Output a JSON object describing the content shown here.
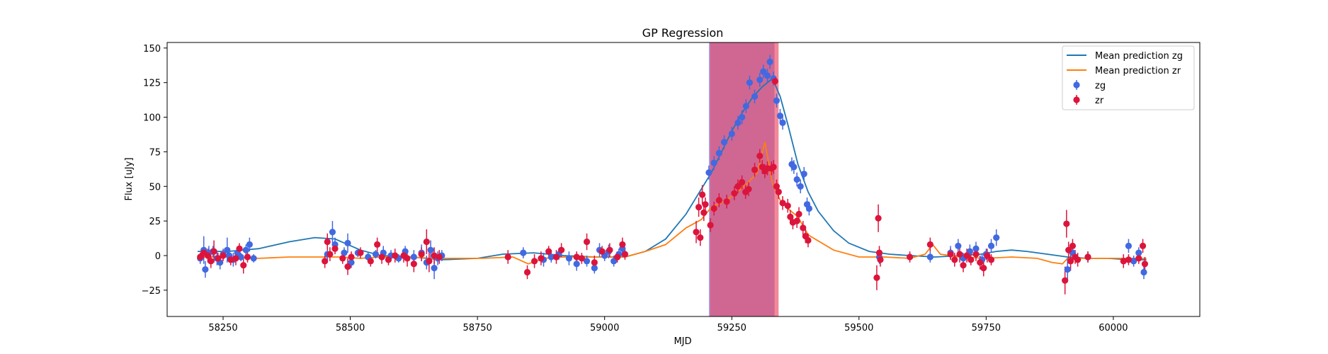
{
  "chart_data": {
    "type": "scatter",
    "title": "GP Regression",
    "xlabel": "MJD",
    "ylabel": "Flux [uJy]",
    "xlim": [
      58140,
      60170
    ],
    "ylim": [
      -44,
      154
    ],
    "xticks": [
      58250,
      58500,
      58750,
      59000,
      59250,
      59500,
      59750,
      60000
    ],
    "yticks": [
      -25,
      0,
      25,
      50,
      75,
      100,
      125,
      150
    ],
    "legend_position": "top-right",
    "shaded_regions": [
      {
        "band": "zg",
        "x_range": [
          59205,
          59334
        ],
        "color": "#6f6fe0"
      },
      {
        "band": "zr",
        "x_range": [
          59207,
          59342
        ],
        "color": "#e8405a"
      }
    ],
    "lines": [
      {
        "name": "Mean prediction zg",
        "color": "#1f77b4",
        "x": [
          58200,
          58260,
          58320,
          58380,
          58430,
          58470,
          58520,
          58560,
          58620,
          58680,
          58750,
          58800,
          58860,
          58920,
          58980,
          59040,
          59080,
          59120,
          59160,
          59190,
          59210,
          59230,
          59250,
          59270,
          59290,
          59310,
          59330,
          59345,
          59360,
          59380,
          59400,
          59420,
          59450,
          59480,
          59520,
          59560,
          59600,
          59650,
          59700,
          59740,
          59770,
          59800,
          59830,
          59870,
          59910,
          59950,
          59990,
          60030,
          60065
        ],
        "y": [
          3,
          3,
          5,
          10,
          13,
          12,
          4,
          0,
          -1,
          -3,
          -2,
          1,
          2,
          0,
          -1,
          -1,
          3,
          12,
          30,
          48,
          60,
          75,
          90,
          103,
          114,
          122,
          128,
          115,
          95,
          66,
          46,
          32,
          18,
          9,
          3,
          1,
          0,
          -1,
          0,
          1,
          3,
          4,
          3,
          1,
          -1,
          -2,
          -2,
          -3,
          -3
        ]
      },
      {
        "name": "Mean prediction zr",
        "color": "#ff7f0e",
        "x": [
          58200,
          58260,
          58320,
          58380,
          58440,
          58480,
          58520,
          58560,
          58620,
          58660,
          58700,
          58760,
          58820,
          58850,
          58880,
          58920,
          58960,
          59000,
          59040,
          59080,
          59120,
          59160,
          59190,
          59210,
          59240,
          59260,
          59280,
          59300,
          59315,
          59330,
          59345,
          59360,
          59380,
          59400,
          59450,
          59500,
          59550,
          59600,
          59630,
          59645,
          59660,
          59700,
          59750,
          59800,
          59850,
          59880,
          59900,
          59910,
          59950,
          60000,
          60065
        ],
        "y": [
          -1,
          -1,
          -2,
          -1,
          -1,
          -1,
          -2,
          -1,
          -1,
          -2,
          -2,
          -2,
          -1,
          -6,
          -2,
          -1,
          -1,
          -1,
          -1,
          3,
          8,
          20,
          26,
          35,
          40,
          46,
          52,
          60,
          82,
          52,
          40,
          34,
          28,
          15,
          4,
          -1,
          -1,
          -2,
          1,
          8,
          1,
          -1,
          -2,
          -1,
          -2,
          -5,
          -6,
          -2,
          -2,
          -2,
          -2
        ]
      }
    ],
    "series": [
      {
        "name": "zg",
        "color": "#4169e1",
        "points": [
          [
            58205,
            -2,
            4
          ],
          [
            58212,
            4,
            10
          ],
          [
            58215,
            -10,
            6
          ],
          [
            58222,
            2,
            5
          ],
          [
            58230,
            3,
            4
          ],
          [
            58238,
            -2,
            5
          ],
          [
            58244,
            -5,
            5
          ],
          [
            58250,
            1,
            4
          ],
          [
            58258,
            4,
            9
          ],
          [
            58262,
            0,
            4
          ],
          [
            58270,
            -3,
            5
          ],
          [
            58278,
            2,
            4
          ],
          [
            58285,
            -1,
            3
          ],
          [
            58295,
            4,
            4
          ],
          [
            58302,
            8,
            5
          ],
          [
            58310,
            -2,
            3
          ],
          [
            58455,
            1,
            6
          ],
          [
            58465,
            17,
            8
          ],
          [
            58470,
            8,
            5
          ],
          [
            58488,
            2,
            4
          ],
          [
            58495,
            9,
            7
          ],
          [
            58502,
            -5,
            4
          ],
          [
            58515,
            2,
            3
          ],
          [
            58535,
            -1,
            3
          ],
          [
            58550,
            1,
            3
          ],
          [
            58565,
            2,
            5
          ],
          [
            58580,
            0,
            4
          ],
          [
            58595,
            -2,
            3
          ],
          [
            58608,
            3,
            4
          ],
          [
            58625,
            -1,
            5
          ],
          [
            58640,
            2,
            6
          ],
          [
            58650,
            -5,
            5
          ],
          [
            58658,
            4,
            7
          ],
          [
            58665,
            -9,
            8
          ],
          [
            58672,
            -2,
            5
          ],
          [
            58680,
            0,
            4
          ],
          [
            58840,
            2,
            4
          ],
          [
            58880,
            -3,
            5
          ],
          [
            58895,
            -1,
            4
          ],
          [
            58910,
            1,
            4
          ],
          [
            58930,
            -2,
            5
          ],
          [
            58945,
            -6,
            5
          ],
          [
            58965,
            -4,
            4
          ],
          [
            58980,
            -9,
            4
          ],
          [
            58990,
            4,
            5
          ],
          [
            59000,
            0,
            4
          ],
          [
            59008,
            3,
            5
          ],
          [
            59018,
            -4,
            4
          ],
          [
            59028,
            1,
            4
          ],
          [
            59035,
            5,
            6
          ],
          [
            59205,
            60,
            5
          ],
          [
            59215,
            67,
            5
          ],
          [
            59225,
            74,
            5
          ],
          [
            59235,
            82,
            5
          ],
          [
            59250,
            88,
            5
          ],
          [
            59262,
            96,
            5
          ],
          [
            59270,
            100,
            5
          ],
          [
            59278,
            108,
            5
          ],
          [
            59285,
            125,
            5
          ],
          [
            59295,
            115,
            5
          ],
          [
            59305,
            127,
            5
          ],
          [
            59312,
            133,
            5
          ],
          [
            59320,
            130,
            5
          ],
          [
            59325,
            140,
            5
          ],
          [
            59332,
            128,
            5
          ],
          [
            59338,
            112,
            5
          ],
          [
            59345,
            101,
            5
          ],
          [
            59350,
            96,
            5
          ],
          [
            59368,
            66,
            5
          ],
          [
            59372,
            64,
            5
          ],
          [
            59378,
            55,
            5
          ],
          [
            59385,
            50,
            5
          ],
          [
            59392,
            59,
            5
          ],
          [
            59398,
            37,
            5
          ],
          [
            59402,
            34,
            5
          ],
          [
            59540,
            -1,
            5
          ],
          [
            59640,
            -1,
            4
          ],
          [
            59680,
            2,
            5
          ],
          [
            59695,
            7,
            5
          ],
          [
            59705,
            -2,
            4
          ],
          [
            59718,
            3,
            5
          ],
          [
            59730,
            5,
            5
          ],
          [
            59742,
            -3,
            4
          ],
          [
            59750,
            1,
            4
          ],
          [
            59760,
            7,
            5
          ],
          [
            59770,
            13,
            6
          ],
          [
            59910,
            -10,
            8
          ],
          [
            59920,
            2,
            5
          ],
          [
            59950,
            -1,
            4
          ],
          [
            60030,
            7,
            5
          ],
          [
            60040,
            -4,
            4
          ],
          [
            60050,
            2,
            4
          ],
          [
            60060,
            -12,
            5
          ]
        ]
      },
      {
        "name": "zr",
        "color": "#dc143c",
        "points": [
          [
            58205,
            -1,
            3
          ],
          [
            58212,
            2,
            4
          ],
          [
            58220,
            0,
            5
          ],
          [
            58226,
            -4,
            5
          ],
          [
            58232,
            3,
            8
          ],
          [
            58240,
            -2,
            4
          ],
          [
            58250,
            0,
            4
          ],
          [
            58265,
            -3,
            4
          ],
          [
            58275,
            -2,
            5
          ],
          [
            58282,
            5,
            4
          ],
          [
            58290,
            -7,
            6
          ],
          [
            58298,
            -1,
            4
          ],
          [
            58450,
            -4,
            5
          ],
          [
            58455,
            10,
            6
          ],
          [
            58460,
            1,
            5
          ],
          [
            58470,
            5,
            4
          ],
          [
            58485,
            -2,
            4
          ],
          [
            58495,
            -8,
            6
          ],
          [
            58502,
            -1,
            4
          ],
          [
            58520,
            2,
            4
          ],
          [
            58540,
            -4,
            4
          ],
          [
            58553,
            8,
            5
          ],
          [
            58562,
            -1,
            5
          ],
          [
            58575,
            -3,
            4
          ],
          [
            58588,
            0,
            5
          ],
          [
            58605,
            0,
            5
          ],
          [
            58612,
            -2,
            6
          ],
          [
            58625,
            -6,
            6
          ],
          [
            58640,
            1,
            5
          ],
          [
            58650,
            10,
            9
          ],
          [
            58655,
            -4,
            8
          ],
          [
            58665,
            0,
            6
          ],
          [
            58675,
            -1,
            5
          ],
          [
            58810,
            -1,
            5
          ],
          [
            58848,
            -12,
            5
          ],
          [
            58862,
            -4,
            5
          ],
          [
            58875,
            -2,
            5
          ],
          [
            58890,
            3,
            4
          ],
          [
            58905,
            -1,
            5
          ],
          [
            58915,
            4,
            5
          ],
          [
            58945,
            -1,
            4
          ],
          [
            58955,
            -2,
            4
          ],
          [
            58965,
            10,
            6
          ],
          [
            58980,
            -5,
            5
          ],
          [
            58995,
            3,
            4
          ],
          [
            59010,
            4,
            5
          ],
          [
            59025,
            -1,
            4
          ],
          [
            59035,
            8,
            5
          ],
          [
            59040,
            1,
            4
          ],
          [
            59180,
            17,
            8
          ],
          [
            59185,
            35,
            7
          ],
          [
            59188,
            13,
            6
          ],
          [
            59192,
            44,
            7
          ],
          [
            59195,
            31,
            6
          ],
          [
            59198,
            37,
            5
          ],
          [
            59208,
            22,
            5
          ],
          [
            59215,
            34,
            5
          ],
          [
            59225,
            40,
            5
          ],
          [
            59240,
            39,
            5
          ],
          [
            59255,
            45,
            5
          ],
          [
            59262,
            50,
            5
          ],
          [
            59270,
            53,
            5
          ],
          [
            59277,
            46,
            5
          ],
          [
            59283,
            48,
            5
          ],
          [
            59295,
            62,
            5
          ],
          [
            59305,
            72,
            5
          ],
          [
            59310,
            64,
            5
          ],
          [
            59315,
            61,
            5
          ],
          [
            59320,
            63,
            5
          ],
          [
            59328,
            63,
            5
          ],
          [
            59332,
            64,
            5
          ],
          [
            59335,
            126,
            3
          ],
          [
            59338,
            50,
            5
          ],
          [
            59342,
            46,
            5
          ],
          [
            59350,
            38,
            5
          ],
          [
            59360,
            36,
            5
          ],
          [
            59365,
            28,
            5
          ],
          [
            59370,
            24,
            5
          ],
          [
            59378,
            25,
            5
          ],
          [
            59382,
            30,
            5
          ],
          [
            59390,
            20,
            5
          ],
          [
            59395,
            14,
            5
          ],
          [
            59400,
            11,
            5
          ],
          [
            59535,
            -16,
            9
          ],
          [
            59538,
            27,
            10
          ],
          [
            59540,
            2,
            5
          ],
          [
            59542,
            -3,
            5
          ],
          [
            59600,
            -1,
            4
          ],
          [
            59640,
            8,
            5
          ],
          [
            59680,
            1,
            4
          ],
          [
            59688,
            -3,
            5
          ],
          [
            59698,
            1,
            6
          ],
          [
            59705,
            -7,
            5
          ],
          [
            59712,
            0,
            5
          ],
          [
            59720,
            -3,
            4
          ],
          [
            59730,
            1,
            5
          ],
          [
            59738,
            -5,
            5
          ],
          [
            59745,
            -9,
            6
          ],
          [
            59752,
            0,
            5
          ],
          [
            59760,
            -3,
            4
          ],
          [
            59905,
            -18,
            10
          ],
          [
            59908,
            23,
            10
          ],
          [
            59912,
            4,
            6
          ],
          [
            59916,
            -4,
            7
          ],
          [
            59920,
            7,
            5
          ],
          [
            59925,
            -1,
            5
          ],
          [
            59930,
            -3,
            5
          ],
          [
            59950,
            -1,
            4
          ],
          [
            60020,
            -4,
            5
          ],
          [
            60030,
            -3,
            4
          ],
          [
            60050,
            -2,
            4
          ],
          [
            60058,
            7,
            5
          ],
          [
            60062,
            -6,
            5
          ]
        ]
      }
    ]
  }
}
